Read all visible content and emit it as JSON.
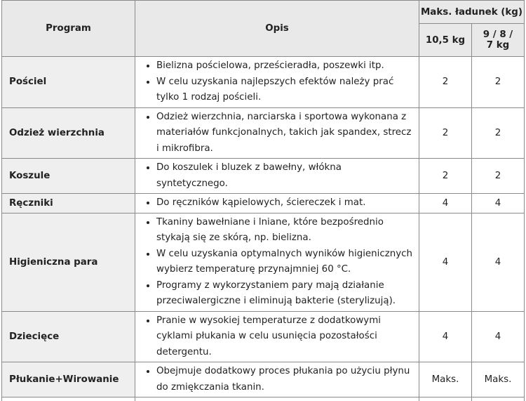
{
  "table": {
    "header": {
      "program": "Program",
      "description": "Opis",
      "max_load": "Maks. ładunek (kg)",
      "load_a": "10,5 kg",
      "load_b": "9 / 8 / 7 kg"
    },
    "rows": [
      {
        "program": "Pościel",
        "bullets": [
          "Bielizna pościelowa, prześcieradła, poszewki itp.",
          "W celu uzyskania najlepszych efektów należy prać tylko 1 rodzaj pościeli."
        ],
        "load_a": "2",
        "load_b": "2"
      },
      {
        "program": "Odzież wierzchnia",
        "bullets": [
          "Odzież wierzchnia, narciarska i sportowa wykonana z materiałów funkcjonalnych, takich jak spandex, strecz i mikrofibra."
        ],
        "load_a": "2",
        "load_b": "2"
      },
      {
        "program": "Koszule",
        "bullets": [
          "Do koszulek i bluzek z bawełny, włókna syntetycznego."
        ],
        "load_a": "2",
        "load_b": "2"
      },
      {
        "program": "Ręczniki",
        "bullets": [
          "Do ręczników kąpielowych, ściereczek i mat."
        ],
        "load_a": "4",
        "load_b": "4"
      },
      {
        "program": "Higieniczna para",
        "bullets": [
          "Tkaniny bawełniane i lniane, które bezpośrednio stykają się ze skórą, np. bielizna.",
          "W celu uzyskania optymalnych wyników higienicznych wybierz temperaturę przynajmniej 60 °C.",
          "Programy z wykorzystaniem pary mają działanie przeciwalergiczne i eliminują bakterie (sterylizują)."
        ],
        "load_a": "4",
        "load_b": "4"
      },
      {
        "program": "Dziecięce",
        "bullets": [
          "Pranie w wysokiej temperaturze z dodatkowymi cyklami płukania w celu usunięcia pozostałości detergentu."
        ],
        "load_a": "4",
        "load_b": "4"
      },
      {
        "program": "Płukanie+Wirowanie",
        "bullets": [
          "Obejmuje dodatkowy proces płukania po użyciu płynu do zmiękczania tkanin."
        ],
        "load_a": "Maks.",
        "load_b": "Maks."
      }
    ]
  }
}
